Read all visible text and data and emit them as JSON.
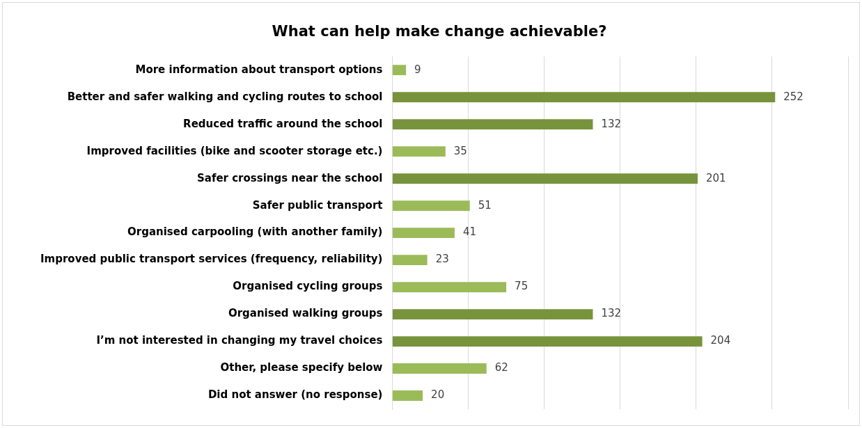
{
  "chart_data": {
    "type": "bar",
    "orientation": "horizontal",
    "title": "What can help make change achievable?",
    "categories": [
      "More information about transport options",
      "Better and safer walking and cycling routes to school",
      "Reduced traffic around the school",
      "Improved facilities (bike and scooter storage etc.)",
      "Safer crossings near the school",
      "Safer public transport",
      "Organised carpooling (with another family)",
      "Improved public transport services (frequency, reliability)",
      "Organised cycling groups",
      "Organised walking groups",
      "I’m not interested in changing my travel choices",
      "Other, please specify below",
      "Did not answer (no response)"
    ],
    "values": [
      9,
      252,
      132,
      35,
      201,
      51,
      41,
      23,
      75,
      132,
      204,
      62,
      20
    ],
    "colors": [
      "#9bbb59",
      "#77933c",
      "#77933c",
      "#9bbb59",
      "#77933c",
      "#9bbb59",
      "#9bbb59",
      "#9bbb59",
      "#9bbb59",
      "#77933c",
      "#77933c",
      "#9bbb59",
      "#9bbb59"
    ],
    "xlim": [
      0,
      300
    ],
    "xticks": [
      {
        "value": 0,
        "label": null
      },
      {
        "value": 50,
        "label": null
      },
      {
        "value": 100,
        "label": null
      },
      {
        "value": 150,
        "label": null
      },
      {
        "value": 200,
        "label": null
      },
      {
        "value": 250,
        "label": null
      },
      {
        "value": 300,
        "label": null
      }
    ],
    "tick_labels": "y",
    "grid": "x",
    "data_labels": true
  }
}
